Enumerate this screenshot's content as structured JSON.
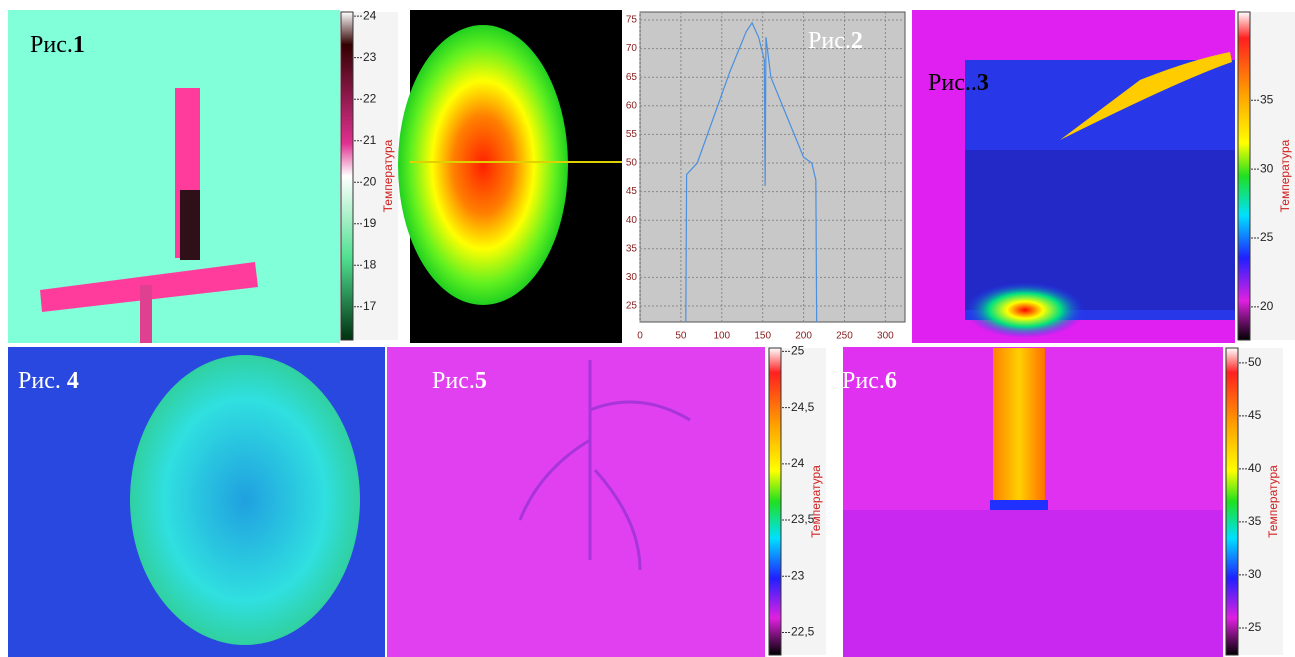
{
  "panels": [
    {
      "prefix": "Рис.",
      "number": "1"
    },
    {
      "prefix": "Рис.",
      "number": "2"
    },
    {
      "prefix": "Рис..",
      "number": "3"
    },
    {
      "prefix": "Рис.",
      "number": "4"
    },
    {
      "prefix": "Рис.",
      "number": "5"
    },
    {
      "prefix": "Рис.",
      "number": "6"
    }
  ],
  "colorbars": [
    {
      "label": "Температура",
      "lim": [
        16.2,
        24.1
      ],
      "ticks": [
        24,
        23,
        22,
        21,
        20,
        19,
        18,
        17
      ]
    },
    {
      "label": "Температура",
      "lim": [
        17.6,
        41.4
      ],
      "ticks": [
        35,
        30,
        25,
        20
      ]
    },
    {
      "label": "Температура",
      "lim": [
        22.3,
        25.03
      ],
      "ticks": [
        25,
        {
          "value": 24.5,
          "label": "24,5"
        },
        24,
        {
          "value": 23.5,
          "label": "23,5"
        },
        23,
        {
          "value": 22.5,
          "label": "22,5"
        }
      ]
    },
    {
      "label": "Температура",
      "lim": [
        22.45,
        51.4
      ],
      "ticks": [
        50,
        45,
        40,
        35,
        30,
        25
      ]
    }
  ],
  "chart_data": {
    "type": "line",
    "color": "#4a90e0",
    "grid": true,
    "x": [
      56,
      57,
      70,
      90,
      110,
      130,
      137,
      145,
      152,
      153,
      154,
      160,
      180,
      200,
      210,
      215,
      216
    ],
    "values": [
      22.2,
      48,
      50,
      58,
      66,
      73,
      74.5,
      72,
      68,
      46,
      72,
      65,
      58,
      51,
      50,
      47,
      22.2
    ],
    "xlim": [
      0,
      324
    ],
    "ylim": [
      22.2,
      76.4
    ],
    "xticks": [
      0,
      50,
      100,
      150,
      200,
      250,
      300
    ],
    "yticks": [
      25,
      30,
      35,
      40,
      45,
      50,
      55,
      60,
      65,
      70,
      75
    ]
  }
}
